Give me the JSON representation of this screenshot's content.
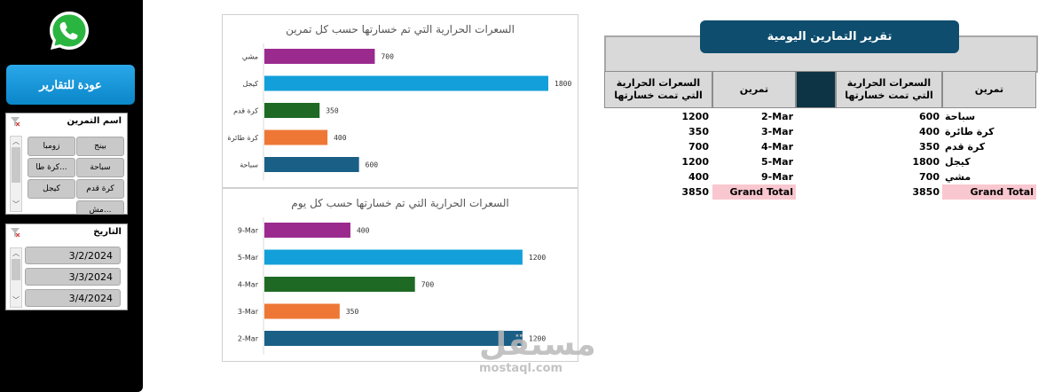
{
  "sidebar": {
    "back_button": "عودة للتقارير",
    "exercise_slicer": {
      "title": "اسم التمرين",
      "items": [
        "بينج",
        "زومبا",
        "سباحة",
        "كرة طا...",
        "كرة قدم",
        "كيجل",
        "مش..."
      ]
    },
    "date_slicer": {
      "title": "التاريخ",
      "items": [
        "3/2/2024",
        "3/3/2024",
        "3/4/2024"
      ]
    }
  },
  "colors": {
    "purple": "#9b2a8f",
    "blue": "#13a0da",
    "green": "#1e6a25",
    "orange": "#ee7735",
    "navy": "#1a5f86"
  },
  "chart_data": [
    {
      "type": "bar",
      "title": "السعرات الحرارية التي تم خسارتها حسب كل تمرين",
      "categories": [
        "مشي",
        "كيجل",
        "كرة قدم",
        "كرة طائرة",
        "سباحة"
      ],
      "values": [
        700,
        1800,
        350,
        400,
        600
      ],
      "colors": [
        "#9b2a8f",
        "#13a0da",
        "#1e6a25",
        "#ee7735",
        "#1a5f86"
      ],
      "orientation": "horizontal",
      "grid": false
    },
    {
      "type": "bar",
      "title": "السعرات الحرارية التي تم خسارتها حسب كل يوم",
      "categories": [
        "9-Mar",
        "5-Mar",
        "4-Mar",
        "3-Mar",
        "2-Mar"
      ],
      "values": [
        400,
        1200,
        700,
        350,
        1200
      ],
      "colors": [
        "#9b2a8f",
        "#13a0da",
        "#1e6a25",
        "#ee7735",
        "#1a5f86"
      ],
      "orientation": "horizontal",
      "grid": false
    }
  ],
  "report": {
    "title": "تقرير التمارين اليومية",
    "left_table": {
      "col_calories": "السعرات الحرارية التي تمت خسارتها",
      "col_exercise": "تمرين",
      "rows": [
        {
          "calories": "1200",
          "label": "2-Mar"
        },
        {
          "calories": "350",
          "label": "3-Mar"
        },
        {
          "calories": "700",
          "label": "4-Mar"
        },
        {
          "calories": "1200",
          "label": "5-Mar"
        },
        {
          "calories": "400",
          "label": "9-Mar"
        }
      ],
      "total": {
        "calories": "3850",
        "label": "Grand Total"
      }
    },
    "right_table": {
      "col_calories": "السعرات الحرارية التي تمت خسارتها",
      "col_exercise": "تمرين",
      "rows": [
        {
          "calories": "600",
          "label": "سباحة"
        },
        {
          "calories": "400",
          "label": "كرة طائرة"
        },
        {
          "calories": "350",
          "label": "كرة قدم"
        },
        {
          "calories": "1800",
          "label": "كيجل"
        },
        {
          "calories": "700",
          "label": "مشي"
        }
      ],
      "total": {
        "calories": "3850",
        "label": "Grand Total"
      }
    }
  },
  "watermark": {
    "logo_text": "مستقل",
    "site": "mostaql.com"
  }
}
